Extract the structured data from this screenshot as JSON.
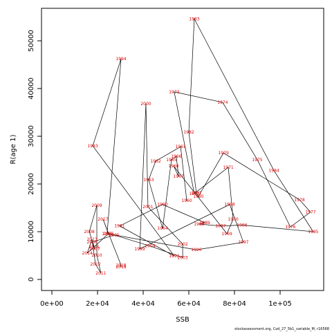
{
  "chart_data": {
    "type": "line",
    "x_label": "SSB",
    "y_label": "R(age 1)",
    "footnote": "stockassessment.org, Cod_27_5b1_variable_M, r16568",
    "line_color": "#000000",
    "label_color": "#e00000",
    "xlim": [
      -4545,
      119090
    ],
    "ylim": [
      -2319,
      56812
    ],
    "xticks": [
      {
        "value": 0,
        "label": "0e+00"
      },
      {
        "value": 20000,
        "label": "2e+04"
      },
      {
        "value": 40000,
        "label": "4e+04"
      },
      {
        "value": 60000,
        "label": "6e+04"
      },
      {
        "value": 80000,
        "label": "8e+04"
      },
      {
        "value": 100000,
        "label": "1e+05"
      }
    ],
    "yticks": [
      0,
      10000,
      20000,
      30000,
      40000,
      50000
    ],
    "point_labels": [
      "1960",
      "1961",
      "1962",
      "1963",
      "1964",
      "1965",
      "1966",
      "1967",
      "1968",
      "1969",
      "1970",
      "1971",
      "1972",
      "1973",
      "1974",
      "1975",
      "1976",
      "1977",
      "1978",
      "1979",
      "1980",
      "1981",
      "1982",
      "1983",
      "1984",
      "1985",
      "1986",
      "1987",
      "1988",
      "1989",
      "1990",
      "1991",
      "1992",
      "1993",
      "1994",
      "1995",
      "1996",
      "1997",
      "1998",
      "1999",
      "2000",
      "2001",
      "2002",
      "2003",
      "2004",
      "2005",
      "2006",
      "2007",
      "2008",
      "2009",
      "2010",
      "2011",
      "2012",
      "2013",
      "2014",
      "2015",
      "2016",
      "2017",
      "2018",
      "2019"
    ],
    "x": [
      59100,
      56400,
      45500,
      42400,
      48500,
      52400,
      54500,
      55500,
      53300,
      76700,
      79400,
      77300,
      62400,
      53600,
      74800,
      90000,
      104500,
      113300,
      108500,
      75200,
      64200,
      63300,
      60000,
      62400,
      97300,
      114500,
      83300,
      73900,
      64500,
      67000,
      48500,
      29700,
      53600,
      17900,
      30300,
      24200,
      63300,
      83900,
      77900,
      38500,
      41200,
      42100,
      57300,
      57300,
      43000,
      27300,
      17600,
      18800,
      16400,
      19700,
      19700,
      21500,
      19100,
      17600,
      15500,
      18500,
      24800,
      22400,
      30300,
      30300
    ],
    "series": [
      {
        "name": "R(age 1)",
        "values": [
          16500,
          27800,
          24800,
          20900,
          10700,
          25100,
          25800,
          21600,
          23800,
          9600,
          12600,
          23500,
          18000,
          39300,
          37100,
          25100,
          11000,
          14100,
          16700,
          26500,
          17400,
          18100,
          30900,
          54600,
          22800,
          10000,
          11400,
          11200,
          11600,
          11900,
          15700,
          11200,
          4900,
          28000,
          46200,
          9600,
          6200,
          7800,
          15700,
          6400,
          36800,
          15200,
          7400,
          4600,
          7000,
          9300,
          7800,
          6400,
          10000,
          15500,
          5100,
          1300,
          3200,
          8400,
          5500,
          6800,
          9600,
          12600,
          3000,
          2600
        ]
      }
    ]
  }
}
